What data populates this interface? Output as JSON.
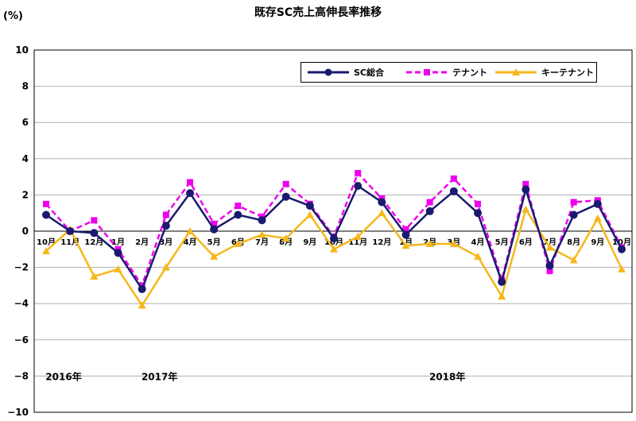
{
  "chart_data": {
    "type": "line",
    "title": "既存SC売上高伸長率推移",
    "ylabel": "(%)",
    "ylim": [
      -10,
      10
    ],
    "yticks": [
      10,
      8,
      6,
      4,
      2,
      0,
      -2,
      -4,
      -6,
      -8,
      -10
    ],
    "ytick_labels": [
      "10",
      "8",
      "6",
      "4",
      "2",
      "0",
      "−2",
      "−4",
      "−6",
      "−8",
      "−10"
    ],
    "grid": true,
    "legend_position": "top-right",
    "categories": [
      "10月",
      "11月",
      "12月",
      "1月",
      "2月",
      "3月",
      "4月",
      "5月",
      "6月",
      "7月",
      "8月",
      "9月",
      "10月",
      "11月",
      "12月",
      "1月",
      "2月",
      "3月",
      "4月",
      "5月",
      "6月",
      "7月",
      "8月",
      "9月",
      "10月"
    ],
    "year_labels": [
      {
        "label": "2016年",
        "index": 0
      },
      {
        "label": "2017年",
        "index": 4
      },
      {
        "label": "2018年",
        "index": 16
      }
    ],
    "series": [
      {
        "name": "SC総合",
        "color": "#1a1a6e",
        "marker": "circle",
        "dash": false,
        "values": [
          0.9,
          0.0,
          -0.1,
          -1.2,
          -3.2,
          0.3,
          2.1,
          0.1,
          0.9,
          0.6,
          1.9,
          1.4,
          -0.4,
          2.5,
          1.6,
          -0.2,
          1.1,
          2.2,
          1.0,
          -2.8,
          2.3,
          -1.9,
          0.9,
          1.5,
          -1.0
        ]
      },
      {
        "name": "テナント",
        "color": "#ee00ee",
        "marker": "square",
        "dash": true,
        "values": [
          1.5,
          0.0,
          0.6,
          -1.0,
          -3.0,
          0.9,
          2.7,
          0.4,
          1.4,
          0.8,
          2.6,
          1.5,
          -0.3,
          3.2,
          1.8,
          0.1,
          1.6,
          2.9,
          1.5,
          -2.7,
          2.6,
          -2.2,
          1.6,
          1.7,
          -0.9
        ]
      },
      {
        "name": "キーテナント",
        "color": "#f5b81c",
        "marker": "triangle",
        "dash": false,
        "values": [
          -1.1,
          0.1,
          -2.5,
          -2.1,
          -4.1,
          -2.0,
          0.0,
          -1.4,
          -0.7,
          -0.2,
          -0.4,
          0.9,
          -1.0,
          -0.3,
          1.0,
          -0.8,
          -0.7,
          -0.7,
          -1.4,
          -3.6,
          1.2,
          -0.9,
          -1.6,
          0.7,
          -2.1
        ]
      }
    ]
  }
}
